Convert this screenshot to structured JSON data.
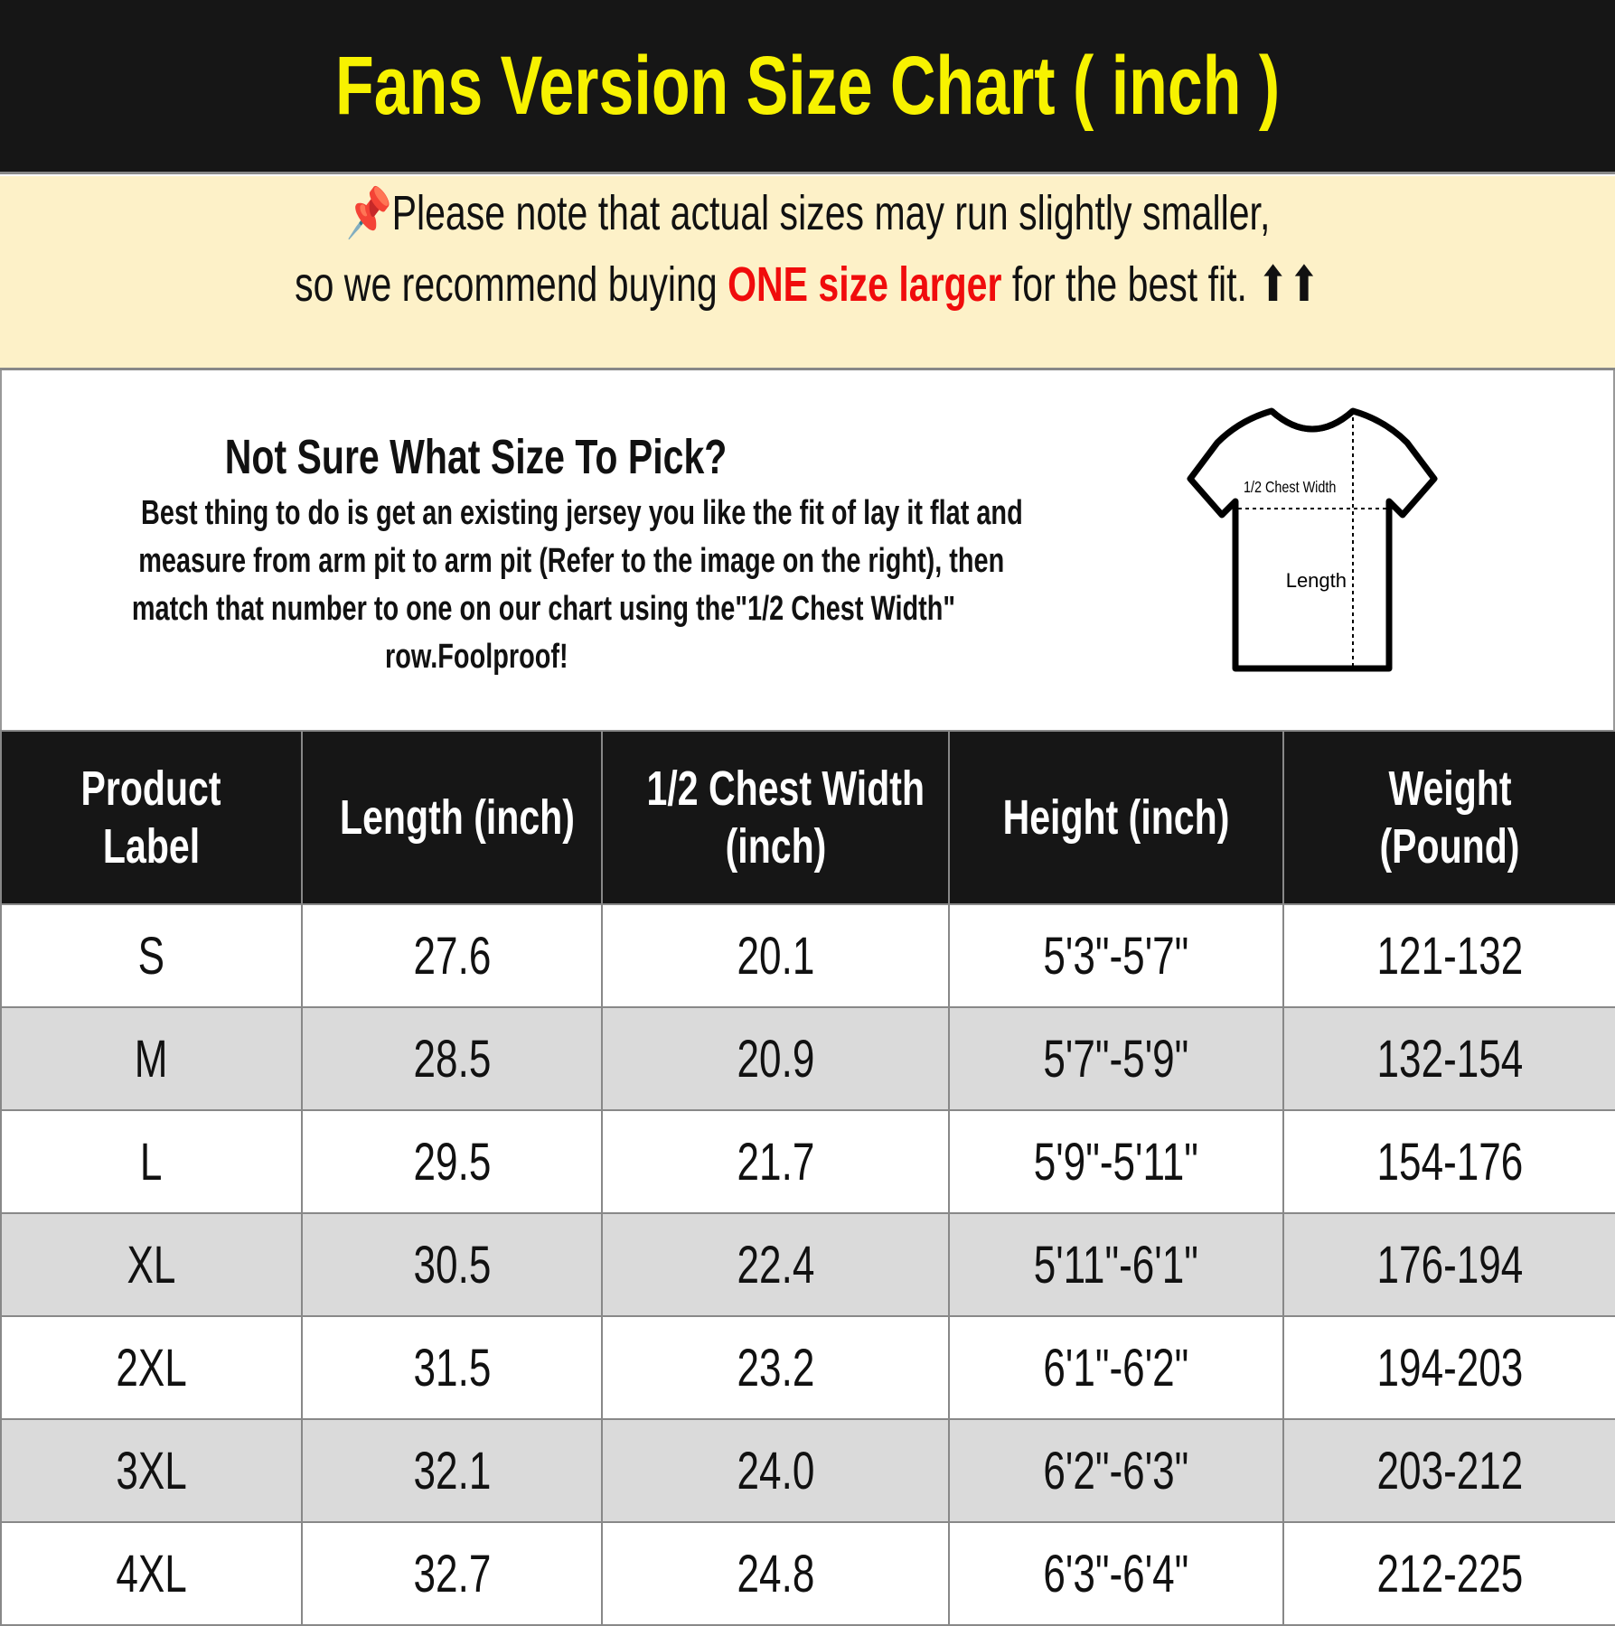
{
  "title": "Fans Version Size Chart ( inch )",
  "note": {
    "line1": "Please note that actual sizes may run slightly smaller,",
    "line2_pre": "so we recommend buying ",
    "line2_highlight": "ONE size larger",
    "line2_post": " for the best fit. ",
    "pin_icon": "pushpin",
    "arrows": "⬆⬆",
    "highlight_color": "#f00c0c"
  },
  "info": {
    "title": "Not Sure What Size To Pick?",
    "lines": [
      "Best thing to do is get an existing jersey you like the fit of lay it flat and",
      "measure from arm pit to arm pit (Refer to the image on the right), then",
      "match that number to one on our chart using the\"1/2 Chest Width\"",
      "row.Foolproof!"
    ],
    "shirt_chest_label": "1/2 Chest Width",
    "shirt_length_label": "Length"
  },
  "table": {
    "headers": [
      [
        "Product",
        "Label"
      ],
      [
        "Length (inch)"
      ],
      [
        "1/2 Chest Width",
        "(inch)"
      ],
      [
        "Height (inch)"
      ],
      [
        "Weight",
        "(Pound)"
      ]
    ],
    "rows": [
      [
        "S",
        "27.6",
        "20.1",
        "5'3\"-5'7\"",
        "121-132"
      ],
      [
        "M",
        "28.5",
        "20.9",
        "5'7\"-5'9\"",
        "132-154"
      ],
      [
        "L",
        "29.5",
        "21.7",
        "5'9\"-5'11\"",
        "154-176"
      ],
      [
        "XL",
        "30.5",
        "22.4",
        "5'11\"-6'1\"",
        "176-194"
      ],
      [
        "2XL",
        "31.5",
        "23.2",
        "6'1\"-6'2\"",
        "194-203"
      ],
      [
        "3XL",
        "32.1",
        "24.0",
        "6'2\"-6'3\"",
        "203-212"
      ],
      [
        "4XL",
        "32.7",
        "24.8",
        "6'3\"-6'4\"",
        "212-225"
      ]
    ]
  }
}
